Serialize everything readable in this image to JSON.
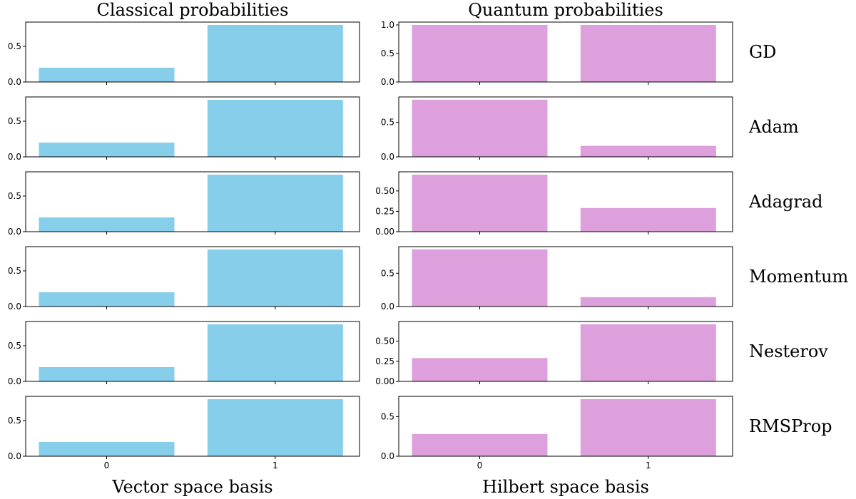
{
  "chart_data": {
    "type": "bar",
    "columns": [
      {
        "title": "Classical probabilities",
        "xlabel": "Vector space basis",
        "color": "#87ceeb"
      },
      {
        "title": "Quantum probabilities",
        "xlabel": "Hilbert space basis",
        "color": "#dda0dd"
      }
    ],
    "categories": [
      "0",
      "1"
    ],
    "rows": [
      {
        "label": "GD",
        "classical": {
          "values": [
            0.2,
            0.8
          ],
          "ylim": [
            0,
            0.84
          ],
          "yticks": [
            0.0,
            0.5
          ],
          "yticklabels": [
            "0.0",
            "0.5"
          ]
        },
        "quantum": {
          "values": [
            1.0,
            1.0
          ],
          "ylim": [
            0,
            1.05
          ],
          "yticks": [
            0.0,
            0.5,
            1.0
          ],
          "yticklabels": [
            "0.0",
            "0.5",
            "1.0"
          ]
        }
      },
      {
        "label": "Adam",
        "classical": {
          "values": [
            0.2,
            0.8
          ],
          "ylim": [
            0,
            0.84
          ],
          "yticks": [
            0.0,
            0.5
          ],
          "yticklabels": [
            "0.0",
            "0.5"
          ]
        },
        "quantum": {
          "values": [
            0.83,
            0.16
          ],
          "ylim": [
            0,
            0.87
          ],
          "yticks": [
            0.0,
            0.5
          ],
          "yticklabels": [
            "0.0",
            "0.5"
          ]
        }
      },
      {
        "label": "Adagrad",
        "classical": {
          "values": [
            0.2,
            0.8
          ],
          "ylim": [
            0,
            0.84
          ],
          "yticks": [
            0.0,
            0.5
          ],
          "yticklabels": [
            "0.0",
            "0.5"
          ]
        },
        "quantum": {
          "values": [
            0.7,
            0.29
          ],
          "ylim": [
            0,
            0.735
          ],
          "yticks": [
            0.0,
            0.25,
            0.5
          ],
          "yticklabels": [
            "0.00",
            "0.25",
            "0.50"
          ]
        }
      },
      {
        "label": "Momentum",
        "classical": {
          "values": [
            0.2,
            0.8
          ],
          "ylim": [
            0,
            0.84
          ],
          "yticks": [
            0.0,
            0.5
          ],
          "yticklabels": [
            "0.0",
            "0.5"
          ]
        },
        "quantum": {
          "values": [
            0.86,
            0.14
          ],
          "ylim": [
            0,
            0.9
          ],
          "yticks": [
            0.0,
            0.5
          ],
          "yticklabels": [
            "0.0",
            "0.5"
          ]
        }
      },
      {
        "label": "Nesterov",
        "classical": {
          "values": [
            0.2,
            0.8
          ],
          "ylim": [
            0,
            0.84
          ],
          "yticks": [
            0.0,
            0.5
          ],
          "yticklabels": [
            "0.0",
            "0.5"
          ]
        },
        "quantum": {
          "values": [
            0.29,
            0.71
          ],
          "ylim": [
            0,
            0.745
          ],
          "yticks": [
            0.0,
            0.25,
            0.5
          ],
          "yticklabels": [
            "0.00",
            "0.25",
            "0.50"
          ]
        }
      },
      {
        "label": "RMSProp",
        "classical": {
          "values": [
            0.2,
            0.8
          ],
          "ylim": [
            0,
            0.84
          ],
          "yticks": [
            0.0,
            0.5
          ],
          "yticklabels": [
            "0.0",
            "0.5"
          ]
        },
        "quantum": {
          "values": [
            0.28,
            0.72
          ],
          "ylim": [
            0,
            0.755
          ],
          "yticks": [
            0.0,
            0.5
          ],
          "yticklabels": [
            "0.0",
            "0.5"
          ]
        }
      }
    ]
  }
}
